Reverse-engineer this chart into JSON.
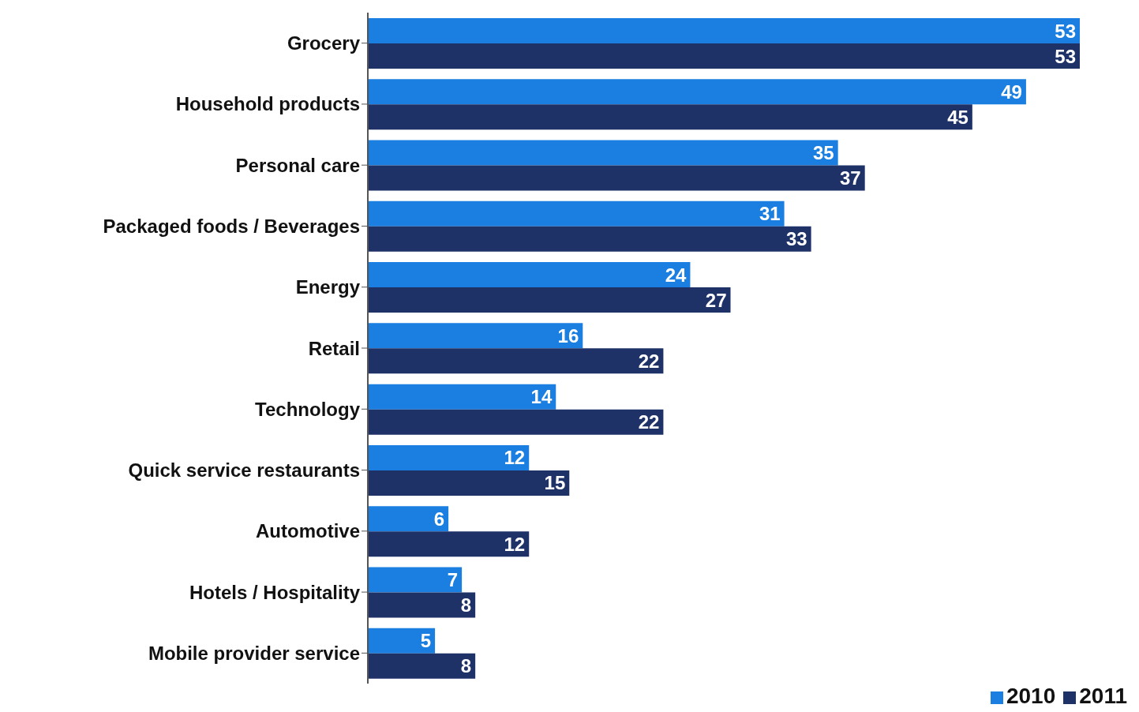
{
  "chart_data": {
    "type": "bar",
    "orientation": "horizontal",
    "categories": [
      "Grocery",
      "Household products",
      "Personal care",
      "Packaged foods / Beverages",
      "Energy",
      "Retail",
      "Technology",
      "Quick service restaurants",
      "Automotive",
      "Hotels / Hospitality",
      "Mobile provider service"
    ],
    "series": [
      {
        "name": "2010",
        "color": "#1a7fe0",
        "values": [
          53,
          49,
          35,
          31,
          24,
          16,
          14,
          12,
          6,
          7,
          5
        ]
      },
      {
        "name": "2011",
        "color": "#1f3268",
        "values": [
          53,
          45,
          37,
          33,
          27,
          22,
          22,
          15,
          12,
          8,
          8
        ]
      }
    ],
    "data_labels": true,
    "legend": "bottom right",
    "grid": false
  }
}
